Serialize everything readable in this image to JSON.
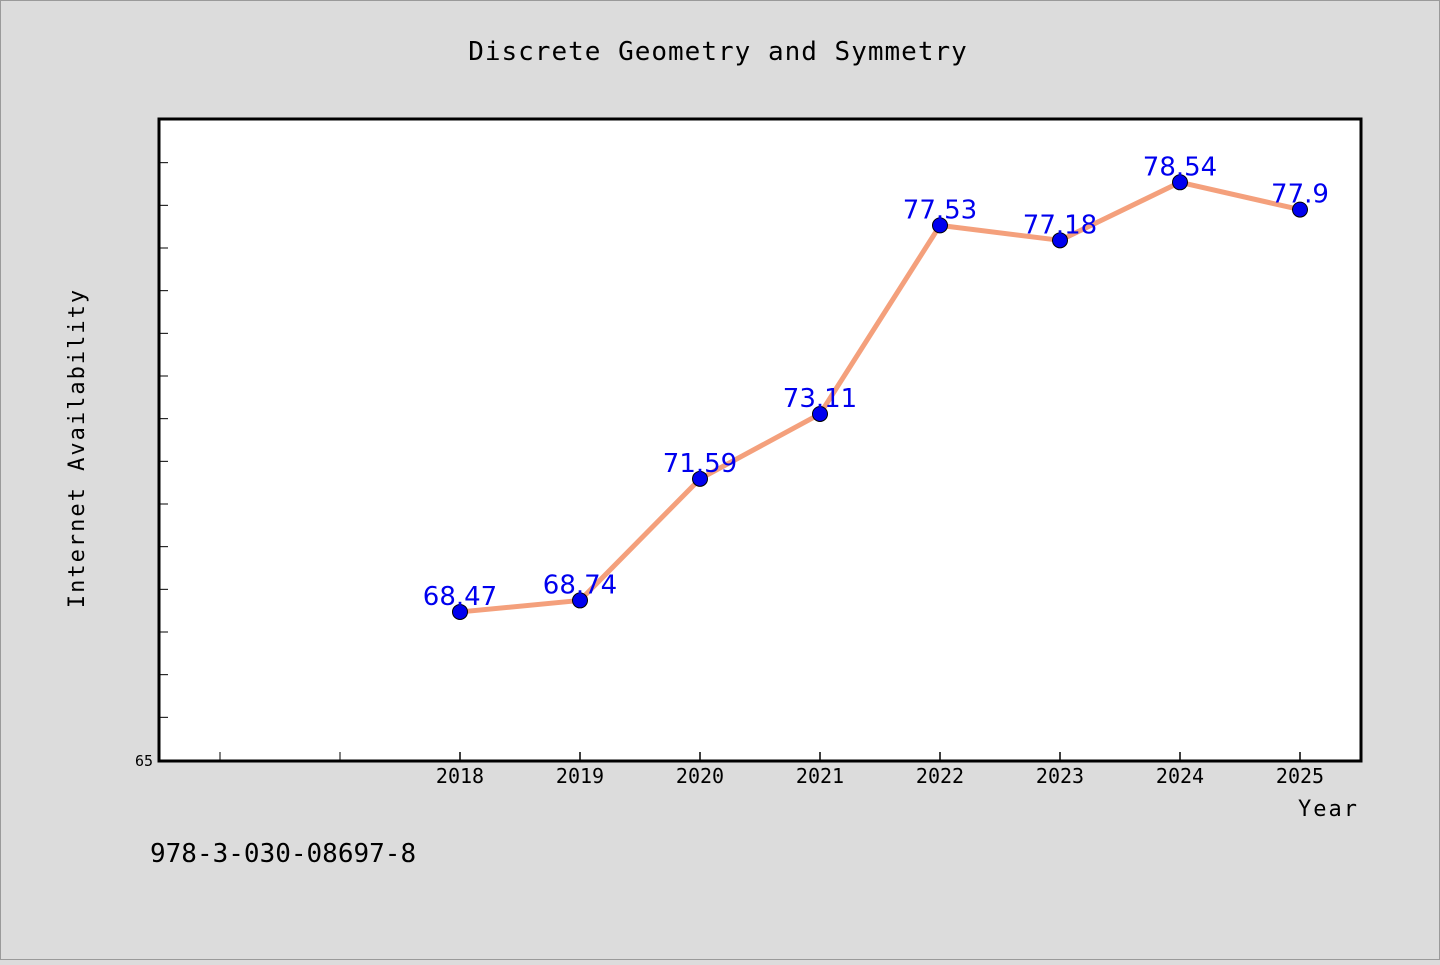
{
  "chart_data": {
    "type": "line",
    "title": "Discrete Geometry and Symmetry",
    "xlabel": "Year",
    "ylabel": "Internet Availability",
    "categories": [
      "2018",
      "2019",
      "2020",
      "2021",
      "2022",
      "2023",
      "2024",
      "2025"
    ],
    "x_slots_before_first": 2,
    "series": [
      {
        "values": [
          68.47,
          68.74,
          71.59,
          73.11,
          77.53,
          77.18,
          78.54,
          77.9
        ],
        "labels": [
          "68.47",
          "68.74",
          "71.59",
          "73.11",
          "77.53",
          "77.18",
          "78.54",
          "77.9"
        ]
      }
    ],
    "ylim": [
      65,
      80
    ],
    "y_min_label": "65",
    "y_minor_step": 1,
    "grid": false,
    "legend": "none",
    "line_color": "#f4a07c",
    "marker_color": "#0000ee",
    "label_color": "#0000ee",
    "plot_background": "#ffffff",
    "page_background": "#dcdcdc"
  },
  "footer": {
    "isbn": "978-3-030-08697-8"
  }
}
